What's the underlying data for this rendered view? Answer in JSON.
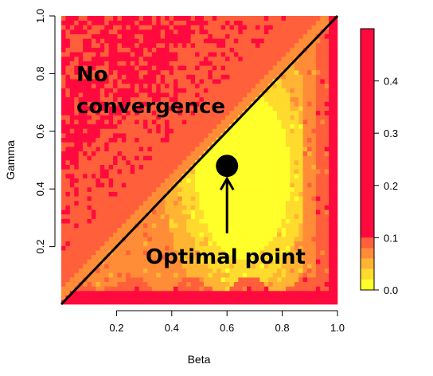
{
  "chart_data": {
    "type": "heatmap",
    "title": "",
    "xlabel": "Beta",
    "ylabel": "Gamma",
    "xlim": [
      0,
      1
    ],
    "ylim": [
      0,
      1
    ],
    "x_ticks": [
      "0.2",
      "0.4",
      "0.6",
      "0.8",
      "1.0"
    ],
    "y_ticks": [
      "0.2",
      "0.4",
      "0.6",
      "0.8",
      "1.0"
    ],
    "x_tick_values": [
      0.2,
      0.4,
      0.6,
      0.8,
      1.0
    ],
    "y_tick_values": [
      0.2,
      0.4,
      0.6,
      0.8,
      1.0
    ],
    "colorbar": {
      "range": [
        0,
        0.5
      ],
      "ticks": [
        "0.0",
        "0.1",
        "0.2",
        "0.3",
        "0.4"
      ],
      "tick_values": [
        0.0,
        0.1,
        0.2,
        0.3,
        0.4
      ],
      "bands": [
        {
          "from": 0.0,
          "to": 0.02,
          "color": "#FFFF2A"
        },
        {
          "from": 0.02,
          "to": 0.04,
          "color": "#FFDB2E"
        },
        {
          "from": 0.04,
          "to": 0.06,
          "color": "#FFB533"
        },
        {
          "from": 0.06,
          "to": 0.08,
          "color": "#FF8C37"
        },
        {
          "from": 0.08,
          "to": 0.1,
          "color": "#FF603B"
        },
        {
          "from": 0.1,
          "to": 0.5,
          "color": "#FF0A3E"
        }
      ]
    },
    "diagonal_line": {
      "from": [
        0,
        0
      ],
      "to": [
        1,
        1
      ],
      "color": "#000000"
    },
    "optimal_point": {
      "x": 0.6,
      "y": 0.48
    },
    "annotations": [
      {
        "text_lines": [
          "No",
          "convergence"
        ]
      },
      {
        "text_lines": [
          "Optimal point"
        ]
      }
    ]
  }
}
